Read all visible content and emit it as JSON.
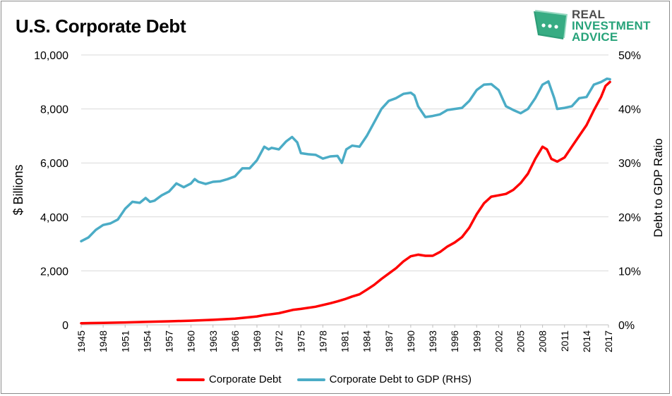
{
  "title": "U.S. Corporate Debt",
  "logo": {
    "line1": "REAL",
    "line2": "INVESTMENT",
    "line3": "ADVICE",
    "icon": "chat-bubble-dots-icon",
    "color": "#27a37a"
  },
  "chart_data": {
    "type": "line",
    "title": "U.S. Corporate Debt",
    "xlabel": "",
    "ylabel": "$ Billions",
    "y2label": "Debt to GDP Ratio",
    "xlim": [
      1945,
      2017
    ],
    "ylim": [
      0,
      10000
    ],
    "y2lim": [
      0,
      50
    ],
    "x_ticks": [
      "1945",
      "1948",
      "1951",
      "1954",
      "1957",
      "1960",
      "1963",
      "1966",
      "1969",
      "1972",
      "1975",
      "1978",
      "1981",
      "1984",
      "1987",
      "1990",
      "1993",
      "1996",
      "1999",
      "2002",
      "2005",
      "2008",
      "2011",
      "2014",
      "2017"
    ],
    "y_ticks": [
      "0",
      "2,000",
      "4,000",
      "6,000",
      "8,000",
      "10,000"
    ],
    "y2_ticks": [
      "0%",
      "10%",
      "20%",
      "30%",
      "40%",
      "50%"
    ],
    "grid": "horizontal",
    "legend_position": "bottom",
    "series": [
      {
        "name": "Corporate Debt",
        "axis": "left",
        "color": "#ff0000",
        "points": [
          [
            1945,
            60
          ],
          [
            1948,
            70
          ],
          [
            1951,
            90
          ],
          [
            1954,
            110
          ],
          [
            1957,
            130
          ],
          [
            1960,
            155
          ],
          [
            1963,
            185
          ],
          [
            1966,
            230
          ],
          [
            1969,
            310
          ],
          [
            1970,
            360
          ],
          [
            1972,
            430
          ],
          [
            1974,
            560
          ],
          [
            1975,
            590
          ],
          [
            1977,
            670
          ],
          [
            1979,
            800
          ],
          [
            1980,
            870
          ],
          [
            1981,
            950
          ],
          [
            1982,
            1050
          ],
          [
            1983,
            1130
          ],
          [
            1984,
            1300
          ],
          [
            1985,
            1480
          ],
          [
            1986,
            1700
          ],
          [
            1987,
            1900
          ],
          [
            1988,
            2100
          ],
          [
            1989,
            2350
          ],
          [
            1990,
            2540
          ],
          [
            1991,
            2600
          ],
          [
            1992,
            2560
          ],
          [
            1993,
            2560
          ],
          [
            1994,
            2700
          ],
          [
            1995,
            2900
          ],
          [
            1996,
            3050
          ],
          [
            1997,
            3250
          ],
          [
            1998,
            3600
          ],
          [
            1999,
            4100
          ],
          [
            2000,
            4500
          ],
          [
            2001,
            4750
          ],
          [
            2002,
            4800
          ],
          [
            2003,
            4850
          ],
          [
            2004,
            5000
          ],
          [
            2005,
            5250
          ],
          [
            2006,
            5600
          ],
          [
            2007,
            6150
          ],
          [
            2008,
            6600
          ],
          [
            2008.6,
            6500
          ],
          [
            2009.2,
            6150
          ],
          [
            2010,
            6050
          ],
          [
            2011,
            6200
          ],
          [
            2012,
            6600
          ],
          [
            2013,
            7000
          ],
          [
            2014,
            7400
          ],
          [
            2015,
            7950
          ],
          [
            2016,
            8450
          ],
          [
            2016.6,
            8850
          ],
          [
            2017.2,
            9000
          ]
        ]
      },
      {
        "name": "Corporate Debt to GDP (RHS)",
        "axis": "right",
        "color": "#4bacc6",
        "points": [
          [
            1945,
            15.5
          ],
          [
            1946,
            16.2
          ],
          [
            1947,
            17.6
          ],
          [
            1948,
            18.5
          ],
          [
            1949,
            18.8
          ],
          [
            1950,
            19.5
          ],
          [
            1951,
            21.5
          ],
          [
            1952,
            22.8
          ],
          [
            1953,
            22.6
          ],
          [
            1953.8,
            23.5
          ],
          [
            1954.4,
            22.8
          ],
          [
            1955,
            23.0
          ],
          [
            1956,
            24.0
          ],
          [
            1957,
            24.7
          ],
          [
            1958,
            26.2
          ],
          [
            1959,
            25.5
          ],
          [
            1960,
            26.2
          ],
          [
            1960.5,
            27.0
          ],
          [
            1961,
            26.5
          ],
          [
            1962,
            26.1
          ],
          [
            1963,
            26.5
          ],
          [
            1964,
            26.6
          ],
          [
            1965,
            27.0
          ],
          [
            1966,
            27.5
          ],
          [
            1967,
            29.0
          ],
          [
            1968,
            29.0
          ],
          [
            1969,
            30.5
          ],
          [
            1970,
            33.0
          ],
          [
            1970.6,
            32.5
          ],
          [
            1971,
            32.8
          ],
          [
            1972,
            32.5
          ],
          [
            1973,
            34.0
          ],
          [
            1973.8,
            34.8
          ],
          [
            1974.5,
            33.8
          ],
          [
            1975,
            31.8
          ],
          [
            1976,
            31.6
          ],
          [
            1977,
            31.5
          ],
          [
            1978,
            30.8
          ],
          [
            1979,
            31.2
          ],
          [
            1980,
            31.3
          ],
          [
            1980.6,
            30.0
          ],
          [
            1981.2,
            32.5
          ],
          [
            1982,
            33.2
          ],
          [
            1983,
            33.0
          ],
          [
            1984,
            35.0
          ],
          [
            1985,
            37.5
          ],
          [
            1986,
            40.0
          ],
          [
            1987,
            41.5
          ],
          [
            1988,
            42.0
          ],
          [
            1989,
            42.8
          ],
          [
            1990,
            43.0
          ],
          [
            1990.5,
            42.5
          ],
          [
            1991,
            40.5
          ],
          [
            1992,
            38.5
          ],
          [
            1993,
            38.7
          ],
          [
            1994,
            39.0
          ],
          [
            1995,
            39.8
          ],
          [
            1996,
            40.0
          ],
          [
            1997,
            40.2
          ],
          [
            1998,
            41.5
          ],
          [
            1999,
            43.5
          ],
          [
            2000,
            44.5
          ],
          [
            2001,
            44.6
          ],
          [
            2002,
            43.5
          ],
          [
            2003,
            40.5
          ],
          [
            2004,
            39.8
          ],
          [
            2005,
            39.2
          ],
          [
            2006,
            40.0
          ],
          [
            2007,
            42.0
          ],
          [
            2008,
            44.5
          ],
          [
            2008.8,
            45.1
          ],
          [
            2009.6,
            42.0
          ],
          [
            2010,
            40.0
          ],
          [
            2011,
            40.2
          ],
          [
            2012,
            40.5
          ],
          [
            2013,
            42.0
          ],
          [
            2014,
            42.2
          ],
          [
            2015,
            44.5
          ],
          [
            2016,
            45.0
          ],
          [
            2016.8,
            45.6
          ],
          [
            2017.2,
            45.5
          ]
        ]
      }
    ]
  }
}
